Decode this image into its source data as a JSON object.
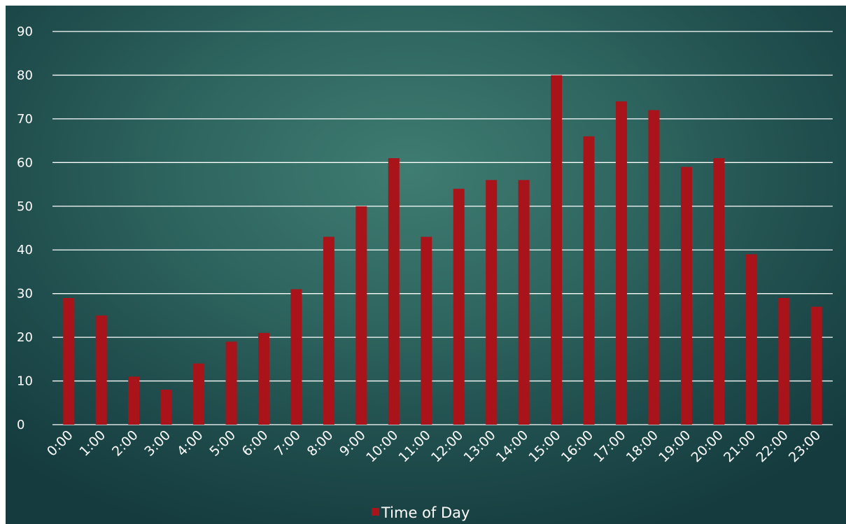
{
  "chart_data": {
    "type": "bar",
    "categories": [
      "0:00",
      "1:00",
      "2:00",
      "3:00",
      "4:00",
      "5:00",
      "6:00",
      "7:00",
      "8:00",
      "9:00",
      "10:00",
      "11:00",
      "12:00",
      "13:00",
      "14:00",
      "15:00",
      "16:00",
      "17:00",
      "18:00",
      "19:00",
      "20:00",
      "21:00",
      "22:00",
      "23:00"
    ],
    "series": [
      {
        "name": "Time of Day",
        "values": [
          29,
          25,
          11,
          8,
          14,
          19,
          21,
          31,
          43,
          50,
          61,
          43,
          54,
          56,
          56,
          80,
          66,
          74,
          72,
          59,
          61,
          39,
          29,
          27
        ]
      }
    ],
    "ylim": [
      0,
      90
    ],
    "yticks": [
      0,
      10,
      20,
      30,
      40,
      50,
      60,
      70,
      80,
      90
    ],
    "grid": true,
    "legend_position": "bottom",
    "colors": {
      "bar": "#a8141a",
      "grid": "#ffffff",
      "text": "#ffffff"
    }
  }
}
